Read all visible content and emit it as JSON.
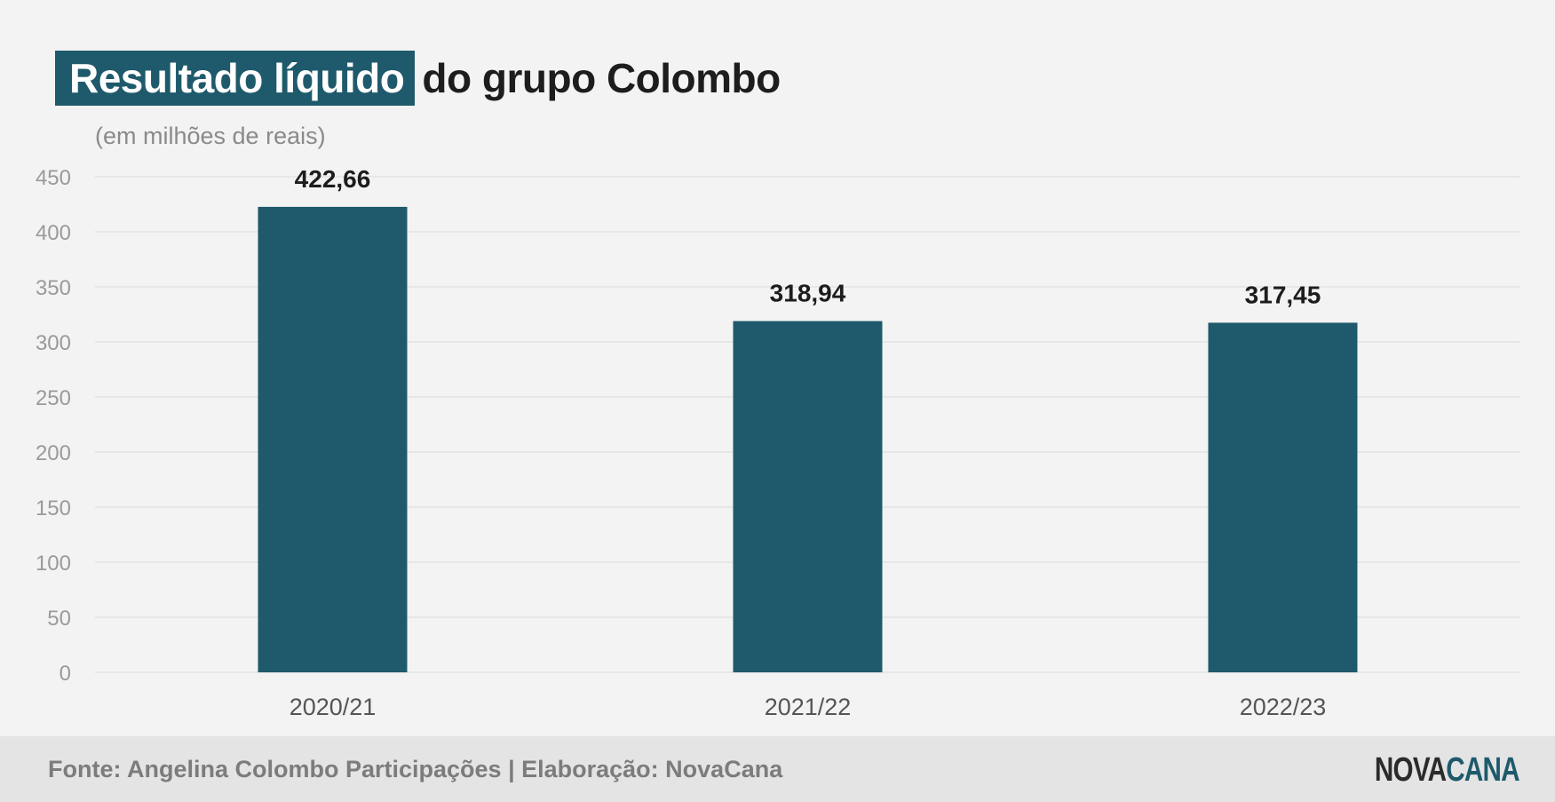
{
  "title": {
    "highlight": "Resultado líquido",
    "rest": "do grupo Colombo"
  },
  "subtitle": "(em milhões de reais)",
  "footer": {
    "source": "Fonte: Angelina Colombo Participações | Elaboração: NovaCana",
    "logo_part1": "NOVA",
    "logo_part2": "CANA"
  },
  "colors": {
    "bar": "#1e5a6b",
    "background": "#f3f3f3",
    "footer_background": "#e4e4e4",
    "gridline": "#e0e0e0",
    "tick_label": "#9a9a9a",
    "category_label": "#555555",
    "value_label": "#1d1d1d"
  },
  "chart_data": {
    "type": "bar",
    "title": "Resultado líquido do grupo Colombo",
    "subtitle": "(em milhões de reais)",
    "categories": [
      "2020/21",
      "2021/22",
      "2022/23"
    ],
    "values": [
      422.66,
      318.94,
      317.45
    ],
    "value_labels": [
      "422,66",
      "318,94",
      "317,45"
    ],
    "ylim": [
      0,
      450
    ],
    "yticks": [
      0,
      50,
      100,
      150,
      200,
      250,
      300,
      350,
      400,
      450
    ],
    "ytick_labels": [
      "0",
      "50",
      "100",
      "150",
      "200",
      "250",
      "300",
      "350",
      "400",
      "450"
    ],
    "grid": true,
    "legend": "none"
  }
}
